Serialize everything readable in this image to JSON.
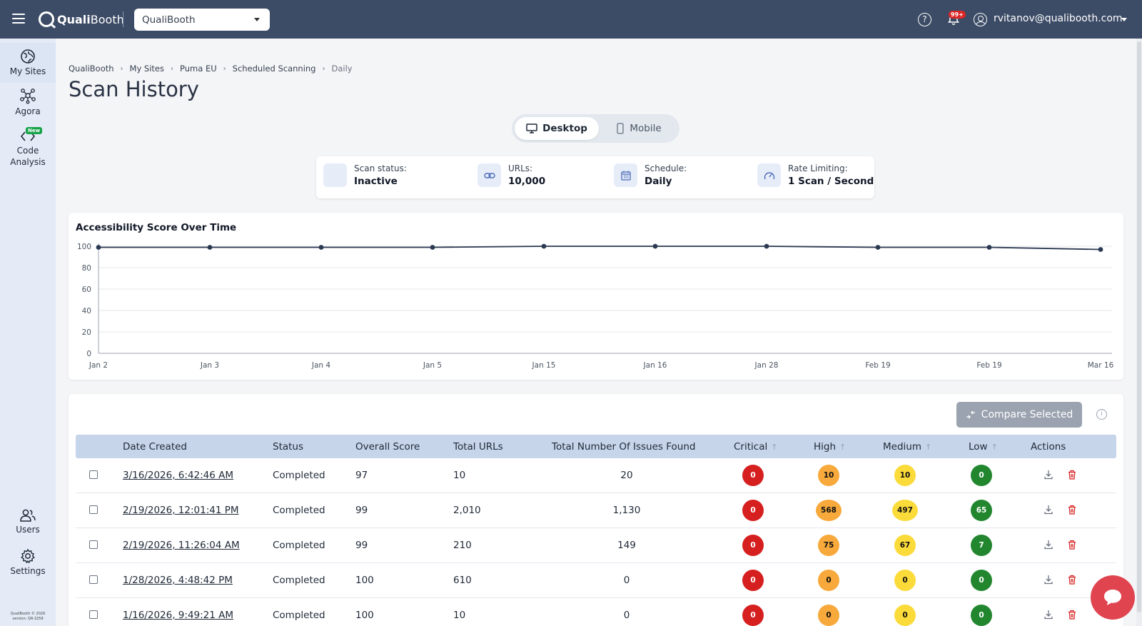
{
  "topbar": {
    "brand_prefix": "Quali",
    "brand_suffix": "Booth",
    "site_select": "QualiBooth",
    "notifications_badge": "99+",
    "user_email": "rvitanov@qualibooth.com"
  },
  "sidebar": {
    "items": [
      {
        "label": "My Sites",
        "icon": "globe-icon"
      },
      {
        "label": "Agora",
        "icon": "network-icon"
      },
      {
        "label": "Code\nAnalysis",
        "icon": "code-icon",
        "tag": "New"
      },
      {
        "label": "Users",
        "icon": "users-icon"
      },
      {
        "label": "Settings",
        "icon": "gear-icon"
      }
    ],
    "footer_line1": "QualiBooth © 2026",
    "footer_line2": "version: QR-3258"
  },
  "breadcrumb": [
    "QualiBooth",
    "My Sites",
    "Puma EU",
    "Scheduled Scanning",
    "Daily"
  ],
  "page_title": "Scan History",
  "toggle": {
    "desktop": "Desktop",
    "mobile": "Mobile",
    "selected": "Desktop"
  },
  "info": {
    "status_label": "Scan status:",
    "status_value": "Inactive",
    "urls_label": "URLs:",
    "urls_value": "10,000",
    "schedule_label": "Schedule:",
    "schedule_value": "Daily",
    "rate_label": "Rate Limiting:",
    "rate_value": "1 Scan / Second"
  },
  "chart_data": {
    "type": "line",
    "title": "Accessibility Score Over Time",
    "categories": [
      "Jan 2",
      "Jan 3",
      "Jan 4",
      "Jan 5",
      "Jan 15",
      "Jan 16",
      "Jan 28",
      "Feb 19",
      "Feb 19",
      "Mar 16"
    ],
    "series": [
      {
        "values": [
          99,
          99,
          99,
          99,
          100,
          100,
          100,
          99,
          99,
          97
        ]
      }
    ],
    "yticks": [
      0,
      20,
      40,
      60,
      80,
      100
    ],
    "ylim": [
      0,
      100
    ],
    "grid": true,
    "color": "#2b3a52"
  },
  "table": {
    "compare_label": "Compare Selected",
    "columns": [
      "Date Created",
      "Status",
      "Overall Score",
      "Total URLs",
      "Total Number Of Issues Found",
      "Critical",
      "High",
      "Medium",
      "Low",
      "Actions"
    ],
    "rows": [
      {
        "date": "3/16/2026, 6:42:46 AM",
        "status": "Completed",
        "score": "97",
        "urls": "10",
        "issues": "20",
        "critical": "0",
        "high": "10",
        "medium": "10",
        "low": "0"
      },
      {
        "date": "2/19/2026, 12:01:41 PM",
        "status": "Completed",
        "score": "99",
        "urls": "2,010",
        "issues": "1,130",
        "critical": "0",
        "high": "568",
        "medium": "497",
        "low": "65"
      },
      {
        "date": "2/19/2026, 11:26:04 AM",
        "status": "Completed",
        "score": "99",
        "urls": "210",
        "issues": "149",
        "critical": "0",
        "high": "75",
        "medium": "67",
        "low": "7"
      },
      {
        "date": "1/28/2026, 4:48:42 PM",
        "status": "Completed",
        "score": "100",
        "urls": "610",
        "issues": "0",
        "critical": "0",
        "high": "0",
        "medium": "0",
        "low": "0"
      },
      {
        "date": "1/16/2026, 9:49:21 AM",
        "status": "Completed",
        "score": "100",
        "urls": "10",
        "issues": "0",
        "critical": "0",
        "high": "0",
        "medium": "0",
        "low": "0"
      }
    ]
  },
  "colors": {
    "topbar": "#3c4b66",
    "sidebar": "#e4ebf6",
    "critical": "#d61f1f",
    "high": "#f7a93b",
    "medium": "#fbdb3a",
    "low": "#22862f",
    "chat": "#e0444f"
  }
}
